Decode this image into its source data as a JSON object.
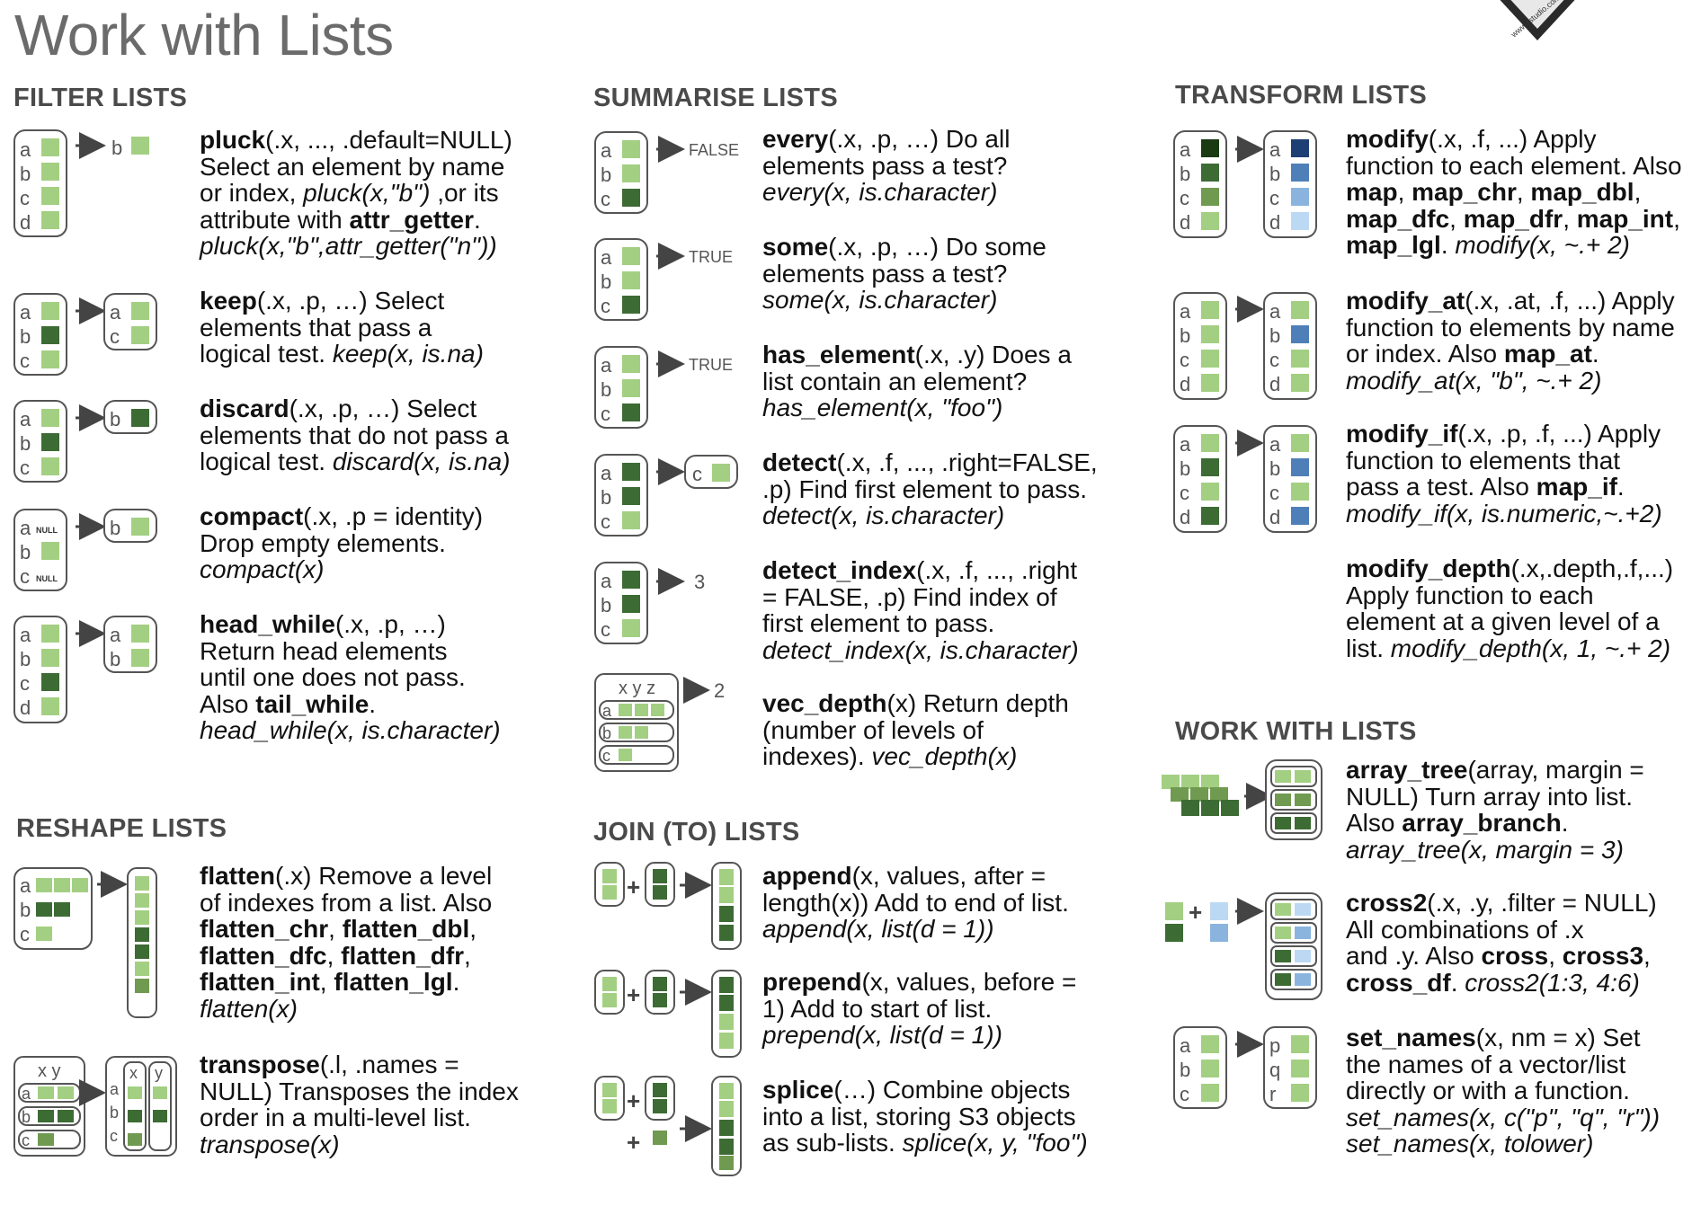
{
  "title": "Work with Lists",
  "logo_text": "www.rstudio.com",
  "colors": {
    "light_green": "#a3cf82",
    "mid_green": "#6f9a4f",
    "dark_green": "#3d6b34",
    "black_green": "#1a3a12",
    "navy": "#1e3f73",
    "mid_blue": "#4f7fb8",
    "light_blue": "#8ab4de",
    "pale_blue": "#bcd9f4",
    "box_stroke": "#555555",
    "heading": "#4a4a4a"
  },
  "sections": {
    "filter": "FILTER LISTS",
    "summarise": "SUMMARISE LISTS",
    "transform": "TRANSFORM LISTS",
    "reshape": "RESHAPE LISTS",
    "join": "JOIN (TO) LISTS",
    "work": "WORK WITH LISTS"
  },
  "filter": {
    "pluck": {
      "name": "pluck",
      "args": "(.x, ..., .default=NULL)",
      "l2": "Select an element by name",
      "l3a": "or index, ",
      "l3b": "pluck(x,\"b\")",
      "l3c": " ,or its",
      "l4a": "attribute with ",
      "l4b": "attr_getter",
      "l4c": ".",
      "ex": "pluck(x,\"b\",attr_getter(\"n\"))"
    },
    "keep": {
      "name": "keep",
      "args": "(.x, .p, …) Select",
      "l2": "elements that pass a",
      "l3a": "logical test. ",
      "ex": "keep(x, is.na)"
    },
    "discard": {
      "name": "discard",
      "args": "(.x, .p, …) Select",
      "l2": "elements that do not pass a",
      "l3a": "logical test. ",
      "ex": "discard(x, is.na)"
    },
    "compact": {
      "name": "compact",
      "args": "(.x, .p = identity)",
      "l2": "Drop empty elements.",
      "ex": "compact(x)"
    },
    "head_while": {
      "name": "head_while",
      "args": "(.x, .p, …)",
      "l2": "Return head elements",
      "l3": "until one does not pass.",
      "l4a": "Also ",
      "l4b": "tail_while",
      "l4c": ".",
      "ex": "head_while(x, is.character)"
    }
  },
  "summarise": {
    "every": {
      "name": "every",
      "args": "(.x, .p, …) Do all",
      "l2": "elements pass a test?",
      "ex": "every(x, is.character)"
    },
    "some": {
      "name": "some",
      "args": "(.x, .p, …) Do some",
      "l2": "elements pass a test?",
      "ex": "some(x,  is.character)"
    },
    "has_element": {
      "name": "has_element",
      "args": "(.x, .y) Does a",
      "l2": "list contain an element?",
      "ex": "has_element(x, \"foo\")"
    },
    "detect": {
      "name": "detect",
      "args": "(.x, .f, ..., .right=FALSE,",
      "l2": ".p) Find first element to pass.",
      "ex": "detect(x,  is.character)"
    },
    "detect_index": {
      "name": "detect_index",
      "args": "(.x, .f, ..., .right",
      "l2": "= FALSE, .p) Find index of",
      "l3": "first element to pass.",
      "ex": "detect_index(x, is.character)"
    },
    "vec_depth": {
      "name": "vec_depth",
      "args": "(x) Return depth",
      "l2": "(number of levels of",
      "l3a": "indexes). ",
      "ex": "vec_depth(x)"
    }
  },
  "transform": {
    "modify": {
      "name": "modify",
      "args": "(.x, .f, ...) Apply",
      "l2": "function to each element. Also",
      "f1": "map",
      "f2": "map_chr",
      "f3": "map_dbl",
      "f4": "map_dfc",
      "f5": "map_dfr",
      "f6": "map_int",
      "f7": "map_lgl",
      "ex": "modify(x, ~.+ 2)"
    },
    "modify_at": {
      "name": "modify_at",
      "args": "(.x, .at, .f, ...) Apply",
      "l2": "function to elements by name",
      "l3a": "or index. Also ",
      "l3b": "map_at",
      "l3c": ".",
      "ex": "modify_at(x, \"b\", ~.+ 2)"
    },
    "modify_if": {
      "name": "modify_if",
      "args": "(.x, .p, .f, ...) Apply",
      "l2": "function to elements that",
      "l3a": "pass a test. Also ",
      "l3b": "map_if",
      "l3c": ".",
      "ex": "modify_if(x, is.numeric,~.+2)"
    },
    "modify_depth": {
      "name": "modify_depth",
      "args": "(.x,.depth,.f,...)",
      "l2": "Apply function to each",
      "l3": "element at a given level of a",
      "l4a": "list. ",
      "ex": "modify_depth(x, 1, ~.+ 2)"
    }
  },
  "reshape": {
    "flatten": {
      "name": "flatten",
      "args": "(.x) Remove a level",
      "l2": "of indexes from a list. Also",
      "f1": "flatten_chr",
      "f2": "flatten_dbl",
      "f3": "flatten_dfc",
      "f4": "flatten_dfr",
      "f5": "flatten_int",
      "f6": "flatten_lgl",
      "ex": "flatten(x)"
    },
    "transpose": {
      "name": "transpose",
      "args": "(.l, .names =",
      "l2": "NULL) Transposes the index",
      "l3": "order in a multi-level list.",
      "ex": "transpose(x)"
    }
  },
  "join": {
    "append": {
      "name": "append",
      "args": "(x, values, after =",
      "l2": "length(x)) Add to end of list.",
      "ex": "append(x, list(d = 1))"
    },
    "prepend": {
      "name": "prepend",
      "args": "(x, values, before =",
      "l2": "1) Add to start of list.",
      "ex": "prepend(x, list(d = 1))"
    },
    "splice": {
      "name": "splice",
      "args": "(…) Combine objects",
      "l2": "into a list, storing S3 objects",
      "l3a": "as sub-lists. ",
      "ex": "splice(x, y, \"foo\")"
    }
  },
  "work": {
    "array_tree": {
      "name": "array_tree",
      "args": "(array, margin =",
      "l2": "NULL) Turn array into list.",
      "l3a": "Also ",
      "l3b": "array_branch",
      "l3c": ".",
      "ex": "array_tree(x, margin = 3)"
    },
    "cross2": {
      "name": "cross2",
      "args": "(.x, .y, .filter = NULL)",
      "l2": "All combinations of .x",
      "l3a": "and .y. Also ",
      "l3b": "cross",
      "l3c": ", ",
      "l3d": "cross3",
      "l3e": ",",
      "l4b": "cross_df",
      "l4c": ". ",
      "ex": "cross2(1:3, 4:6)"
    },
    "set_names": {
      "name": "set_names",
      "args": "(x, nm = x) Set",
      "l2": "the names of a vector/list",
      "l3": "directly or with a function.",
      "ex": "set_names(x, c(\"p\", \"q\", \"r\"))",
      "ex2": "set_names(x, tolower)"
    }
  },
  "diagram_text": {
    "false_label": "FALSE",
    "true_label": "TRUE",
    "three_label": "3",
    "two_label": "2",
    "null_label": "NULL",
    "letters": [
      "a",
      "b",
      "c",
      "d"
    ],
    "xyz": "x y z",
    "xy": "x y",
    "pqr": [
      "p",
      "q",
      "r"
    ],
    "plus": "+",
    "x": "x",
    "y": "y"
  }
}
